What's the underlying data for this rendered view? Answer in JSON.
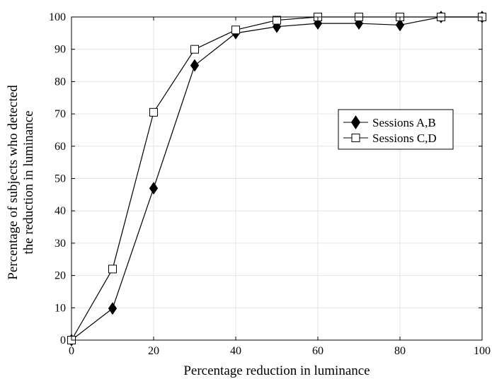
{
  "chart_data": {
    "type": "line",
    "xlabel": "Percentage reduction in luminance",
    "ylabel_lines": [
      "Percentage of subjects who detected",
      "the reduction in luminance"
    ],
    "xlim": [
      0,
      100
    ],
    "ylim": [
      0,
      100
    ],
    "xticks": [
      0,
      20,
      40,
      60,
      80,
      100
    ],
    "yticks": [
      0,
      10,
      20,
      30,
      40,
      50,
      60,
      70,
      80,
      90,
      100
    ],
    "grid": true,
    "legend_position": "right-middle",
    "x": [
      0,
      10,
      20,
      30,
      40,
      50,
      60,
      70,
      80,
      90,
      100
    ],
    "series": [
      {
        "name": "Sessions A,B",
        "marker": "filled-diamond",
        "color": "#000000",
        "values": [
          0,
          9.8,
          47,
          85,
          95,
          97,
          98,
          98,
          97.5,
          100,
          100
        ]
      },
      {
        "name": "Sessions C,D",
        "marker": "open-square",
        "color": "#000000",
        "values": [
          0,
          22,
          70.5,
          90,
          96,
          99,
          100,
          100,
          100,
          100,
          100
        ]
      }
    ]
  }
}
